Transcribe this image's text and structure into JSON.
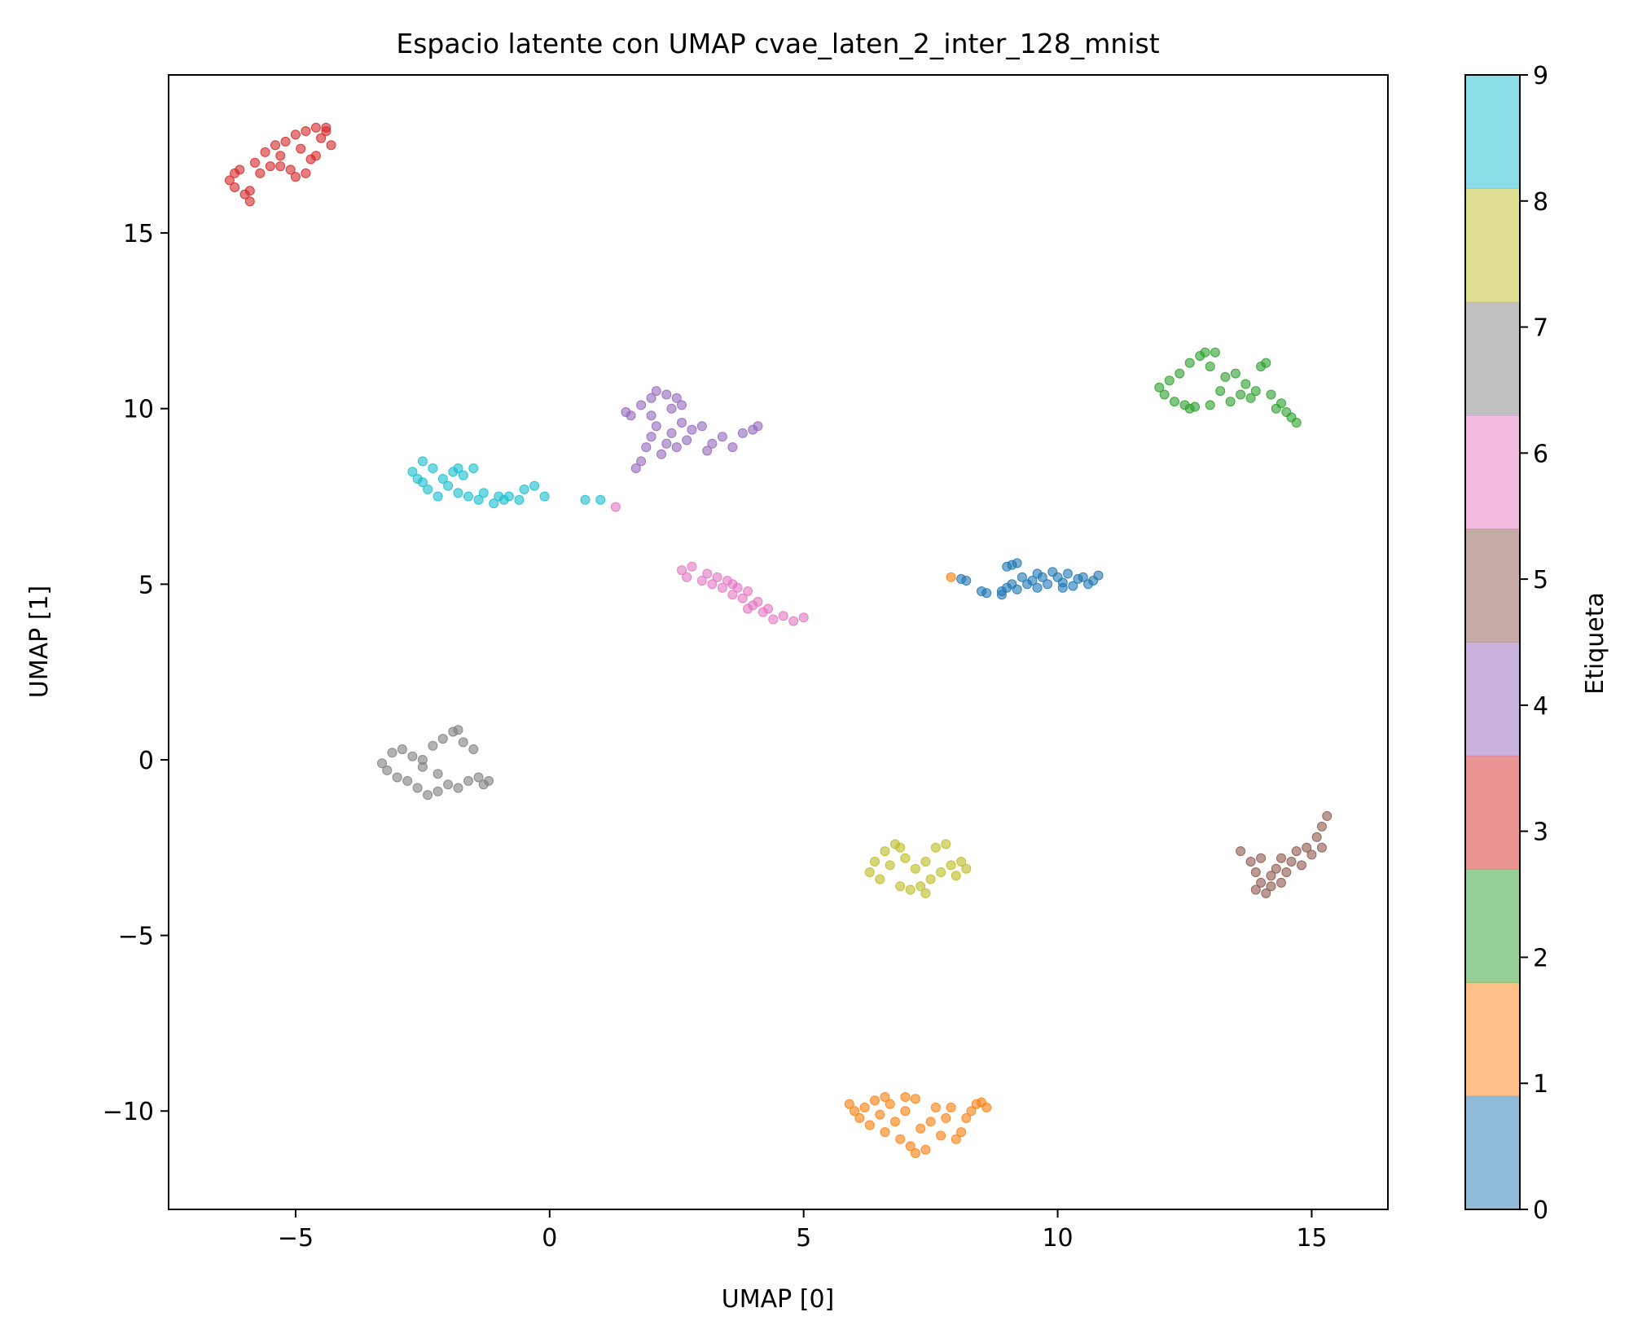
{
  "chart_data": {
    "type": "scatter",
    "title": "Espacio latente con UMAP cvae_laten_2_inter_128_mnist",
    "xlabel": "UMAP [0]",
    "ylabel": "UMAP [1]",
    "xlim": [
      -7.5,
      16.5
    ],
    "ylim": [
      -12.8,
      19.5
    ],
    "x_ticks": [
      -5,
      0,
      5,
      10,
      15
    ],
    "x_tick_labels": [
      "−5",
      "0",
      "5",
      "10",
      "15"
    ],
    "y_ticks": [
      -10,
      -5,
      0,
      5,
      10,
      15
    ],
    "y_tick_labels": [
      "−10",
      "−5",
      "0",
      "5",
      "10",
      "15"
    ],
    "grid": false,
    "colorbar": {
      "label": "Etiqueta",
      "range": [
        0,
        9
      ],
      "ticks": [
        0,
        1,
        2,
        3,
        4,
        5,
        6,
        7,
        8,
        9
      ],
      "tick_labels": [
        "0",
        "1",
        "2",
        "3",
        "4",
        "5",
        "6",
        "7",
        "8",
        "9"
      ],
      "colors": [
        "#1f77b4",
        "#ff7f0e",
        "#2ca02c",
        "#d62728",
        "#9467bd",
        "#8c564b",
        "#e377c2",
        "#7f7f7f",
        "#bcbd22",
        "#17becf"
      ],
      "alpha": 0.5
    },
    "clusters": [
      {
        "label": 0,
        "color": "#1f77b4",
        "points": [
          [
            8.1,
            5.15
          ],
          [
            8.2,
            5.1
          ],
          [
            8.5,
            4.8
          ],
          [
            8.6,
            4.75
          ],
          [
            8.9,
            4.8
          ],
          [
            8.9,
            4.7
          ],
          [
            9.0,
            5.5
          ],
          [
            9.1,
            5.55
          ],
          [
            9.2,
            5.6
          ],
          [
            9.2,
            4.85
          ],
          [
            9.3,
            5.2
          ],
          [
            9.4,
            5.0
          ],
          [
            9.5,
            5.1
          ],
          [
            9.6,
            4.9
          ],
          [
            9.6,
            5.3
          ],
          [
            9.7,
            5.2
          ],
          [
            9.8,
            5.0
          ],
          [
            9.9,
            5.35
          ],
          [
            10.0,
            5.2
          ],
          [
            10.1,
            5.05
          ],
          [
            10.2,
            5.3
          ],
          [
            10.3,
            4.95
          ],
          [
            10.4,
            5.15
          ],
          [
            10.5,
            5.2
          ],
          [
            10.6,
            5.0
          ],
          [
            10.7,
            5.1
          ],
          [
            10.8,
            5.25
          ],
          [
            9.0,
            4.9
          ],
          [
            9.1,
            5.0
          ],
          [
            10.1,
            4.9
          ]
        ]
      },
      {
        "label": 1,
        "color": "#ff7f0e",
        "points": [
          [
            7.9,
            5.2
          ],
          [
            5.9,
            -9.8
          ],
          [
            6.0,
            -10.0
          ],
          [
            6.1,
            -10.2
          ],
          [
            6.2,
            -9.9
          ],
          [
            6.3,
            -10.4
          ],
          [
            6.4,
            -9.7
          ],
          [
            6.5,
            -10.1
          ],
          [
            6.6,
            -10.6
          ],
          [
            6.7,
            -9.8
          ],
          [
            6.8,
            -10.3
          ],
          [
            6.9,
            -10.8
          ],
          [
            7.0,
            -10.0
          ],
          [
            7.0,
            -9.6
          ],
          [
            7.1,
            -11.0
          ],
          [
            7.2,
            -11.2
          ],
          [
            7.3,
            -10.5
          ],
          [
            7.4,
            -11.1
          ],
          [
            7.5,
            -10.3
          ],
          [
            7.6,
            -9.9
          ],
          [
            7.7,
            -10.7
          ],
          [
            7.8,
            -10.2
          ],
          [
            7.9,
            -9.9
          ],
          [
            8.0,
            -10.8
          ],
          [
            8.1,
            -10.6
          ],
          [
            8.2,
            -10.2
          ],
          [
            8.3,
            -10.0
          ],
          [
            8.4,
            -9.8
          ],
          [
            8.5,
            -9.75
          ],
          [
            8.6,
            -9.9
          ],
          [
            6.6,
            -9.6
          ],
          [
            7.2,
            -9.65
          ]
        ]
      },
      {
        "label": 2,
        "color": "#2ca02c",
        "points": [
          [
            12.0,
            10.6
          ],
          [
            12.1,
            10.4
          ],
          [
            12.2,
            10.8
          ],
          [
            12.3,
            10.2
          ],
          [
            12.4,
            11.0
          ],
          [
            12.5,
            10.1
          ],
          [
            12.6,
            11.3
          ],
          [
            12.7,
            10.05
          ],
          [
            12.8,
            11.5
          ],
          [
            12.9,
            11.6
          ],
          [
            13.0,
            11.2
          ],
          [
            13.1,
            11.6
          ],
          [
            13.2,
            10.5
          ],
          [
            13.3,
            10.9
          ],
          [
            13.4,
            10.2
          ],
          [
            13.5,
            11.0
          ],
          [
            13.6,
            10.4
          ],
          [
            13.7,
            10.7
          ],
          [
            13.8,
            10.3
          ],
          [
            13.9,
            10.5
          ],
          [
            14.0,
            11.2
          ],
          [
            14.1,
            11.3
          ],
          [
            14.2,
            10.4
          ],
          [
            14.3,
            10.0
          ],
          [
            14.4,
            10.15
          ],
          [
            14.5,
            9.9
          ],
          [
            14.6,
            9.75
          ],
          [
            14.7,
            9.6
          ],
          [
            12.6,
            10.0
          ],
          [
            13.0,
            10.1
          ]
        ]
      },
      {
        "label": 3,
        "color": "#d62728",
        "points": [
          [
            -6.3,
            16.5
          ],
          [
            -6.2,
            16.3
          ],
          [
            -6.1,
            16.8
          ],
          [
            -6.0,
            16.1
          ],
          [
            -5.9,
            15.9
          ],
          [
            -5.8,
            17.0
          ],
          [
            -5.7,
            16.7
          ],
          [
            -5.6,
            17.3
          ],
          [
            -5.5,
            16.9
          ],
          [
            -5.4,
            17.5
          ],
          [
            -5.3,
            17.2
          ],
          [
            -5.2,
            17.6
          ],
          [
            -5.1,
            16.8
          ],
          [
            -5.0,
            17.8
          ],
          [
            -4.9,
            17.4
          ],
          [
            -4.8,
            17.9
          ],
          [
            -4.7,
            17.1
          ],
          [
            -4.6,
            18.0
          ],
          [
            -4.5,
            17.7
          ],
          [
            -4.4,
            17.9
          ],
          [
            -4.3,
            17.5
          ],
          [
            -4.8,
            16.7
          ],
          [
            -5.0,
            16.6
          ],
          [
            -5.3,
            16.9
          ],
          [
            -4.6,
            17.2
          ],
          [
            -4.4,
            18.0
          ],
          [
            -5.9,
            16.2
          ],
          [
            -6.2,
            16.7
          ]
        ]
      },
      {
        "label": 4,
        "color": "#9467bd",
        "points": [
          [
            1.5,
            9.9
          ],
          [
            1.6,
            9.8
          ],
          [
            1.8,
            10.1
          ],
          [
            2.0,
            10.3
          ],
          [
            2.1,
            10.5
          ],
          [
            2.3,
            10.4
          ],
          [
            2.5,
            10.3
          ],
          [
            2.6,
            10.1
          ],
          [
            1.7,
            8.3
          ],
          [
            1.8,
            8.5
          ],
          [
            1.9,
            8.9
          ],
          [
            2.0,
            9.2
          ],
          [
            2.1,
            9.5
          ],
          [
            2.2,
            8.7
          ],
          [
            2.3,
            9.0
          ],
          [
            2.4,
            9.3
          ],
          [
            2.5,
            8.9
          ],
          [
            2.6,
            9.6
          ],
          [
            2.7,
            9.1
          ],
          [
            2.8,
            9.4
          ],
          [
            3.0,
            9.5
          ],
          [
            3.1,
            8.8
          ],
          [
            3.2,
            9.0
          ],
          [
            3.4,
            9.2
          ],
          [
            3.6,
            8.9
          ],
          [
            3.8,
            9.3
          ],
          [
            4.0,
            9.4
          ],
          [
            4.1,
            9.5
          ],
          [
            2.0,
            9.8
          ],
          [
            2.4,
            10.0
          ]
        ]
      },
      {
        "label": 5,
        "color": "#8c564b",
        "points": [
          [
            13.6,
            -2.6
          ],
          [
            13.8,
            -2.9
          ],
          [
            13.9,
            -3.2
          ],
          [
            14.0,
            -3.5
          ],
          [
            14.1,
            -3.8
          ],
          [
            14.2,
            -3.6
          ],
          [
            14.3,
            -3.1
          ],
          [
            14.4,
            -2.8
          ],
          [
            14.5,
            -3.2
          ],
          [
            14.6,
            -2.9
          ],
          [
            14.7,
            -2.6
          ],
          [
            14.8,
            -3.0
          ],
          [
            14.9,
            -2.5
          ],
          [
            15.0,
            -2.7
          ],
          [
            15.1,
            -2.2
          ],
          [
            15.2,
            -1.9
          ],
          [
            15.3,
            -1.6
          ],
          [
            14.0,
            -2.8
          ],
          [
            14.2,
            -3.3
          ],
          [
            15.2,
            -2.5
          ],
          [
            14.4,
            -3.5
          ],
          [
            13.9,
            -3.7
          ]
        ]
      },
      {
        "label": 6,
        "color": "#e377c2",
        "points": [
          [
            1.3,
            7.2
          ],
          [
            2.6,
            5.4
          ],
          [
            2.7,
            5.2
          ],
          [
            2.8,
            5.5
          ],
          [
            3.0,
            5.1
          ],
          [
            3.1,
            5.3
          ],
          [
            3.2,
            5.0
          ],
          [
            3.3,
            5.2
          ],
          [
            3.4,
            4.9
          ],
          [
            3.5,
            5.1
          ],
          [
            3.6,
            4.7
          ],
          [
            3.7,
            4.9
          ],
          [
            3.8,
            4.6
          ],
          [
            3.9,
            4.8
          ],
          [
            4.0,
            4.4
          ],
          [
            4.1,
            4.5
          ],
          [
            4.2,
            4.2
          ],
          [
            4.3,
            4.3
          ],
          [
            4.4,
            4.0
          ],
          [
            4.6,
            4.1
          ],
          [
            4.8,
            3.95
          ],
          [
            5.0,
            4.05
          ],
          [
            3.9,
            4.3
          ],
          [
            3.6,
            5.0
          ]
        ]
      },
      {
        "label": 7,
        "color": "#7f7f7f",
        "points": [
          [
            -3.3,
            -0.1
          ],
          [
            -3.2,
            -0.3
          ],
          [
            -3.1,
            0.2
          ],
          [
            -3.0,
            -0.5
          ],
          [
            -2.9,
            0.3
          ],
          [
            -2.8,
            -0.6
          ],
          [
            -2.7,
            0.1
          ],
          [
            -2.6,
            -0.8
          ],
          [
            -2.5,
            -0.2
          ],
          [
            -2.4,
            -1.0
          ],
          [
            -2.3,
            0.4
          ],
          [
            -2.2,
            -0.9
          ],
          [
            -2.1,
            0.6
          ],
          [
            -2.0,
            -0.7
          ],
          [
            -1.9,
            0.8
          ],
          [
            -1.8,
            -0.8
          ],
          [
            -1.7,
            0.5
          ],
          [
            -1.6,
            -0.6
          ],
          [
            -1.5,
            0.3
          ],
          [
            -1.4,
            -0.5
          ],
          [
            -1.3,
            -0.7
          ],
          [
            -1.2,
            -0.6
          ],
          [
            -2.5,
            0.0
          ],
          [
            -2.2,
            -0.4
          ],
          [
            -1.8,
            0.85
          ]
        ]
      },
      {
        "label": 8,
        "color": "#bcbd22",
        "points": [
          [
            6.3,
            -3.2
          ],
          [
            6.4,
            -2.9
          ],
          [
            6.5,
            -3.4
          ],
          [
            6.6,
            -2.6
          ],
          [
            6.7,
            -3.0
          ],
          [
            6.8,
            -2.4
          ],
          [
            6.9,
            -3.6
          ],
          [
            7.0,
            -2.8
          ],
          [
            7.1,
            -3.7
          ],
          [
            7.2,
            -3.1
          ],
          [
            7.3,
            -3.6
          ],
          [
            7.4,
            -2.9
          ],
          [
            7.5,
            -3.4
          ],
          [
            7.6,
            -2.5
          ],
          [
            7.7,
            -3.2
          ],
          [
            7.8,
            -2.4
          ],
          [
            7.9,
            -3.0
          ],
          [
            8.0,
            -3.3
          ],
          [
            8.1,
            -2.9
          ],
          [
            8.2,
            -3.1
          ],
          [
            6.9,
            -2.5
          ],
          [
            7.4,
            -3.8
          ]
        ]
      },
      {
        "label": 9,
        "color": "#17becf",
        "points": [
          [
            -2.7,
            8.2
          ],
          [
            -2.6,
            8.0
          ],
          [
            -2.5,
            8.5
          ],
          [
            -2.4,
            7.7
          ],
          [
            -2.3,
            8.3
          ],
          [
            -2.2,
            7.5
          ],
          [
            -2.1,
            8.0
          ],
          [
            -2.0,
            7.8
          ],
          [
            -1.9,
            8.2
          ],
          [
            -1.8,
            7.6
          ],
          [
            -1.7,
            8.1
          ],
          [
            -1.6,
            7.5
          ],
          [
            -1.5,
            8.3
          ],
          [
            -1.4,
            7.4
          ],
          [
            -1.3,
            7.6
          ],
          [
            -1.1,
            7.3
          ],
          [
            -1.0,
            7.5
          ],
          [
            -0.9,
            7.4
          ],
          [
            -0.8,
            7.5
          ],
          [
            -0.6,
            7.4
          ],
          [
            -0.5,
            7.7
          ],
          [
            -0.3,
            7.8
          ],
          [
            -0.1,
            7.5
          ],
          [
            0.7,
            7.4
          ],
          [
            1.0,
            7.4
          ],
          [
            -2.5,
            7.9
          ],
          [
            -1.8,
            8.3
          ]
        ]
      }
    ]
  }
}
